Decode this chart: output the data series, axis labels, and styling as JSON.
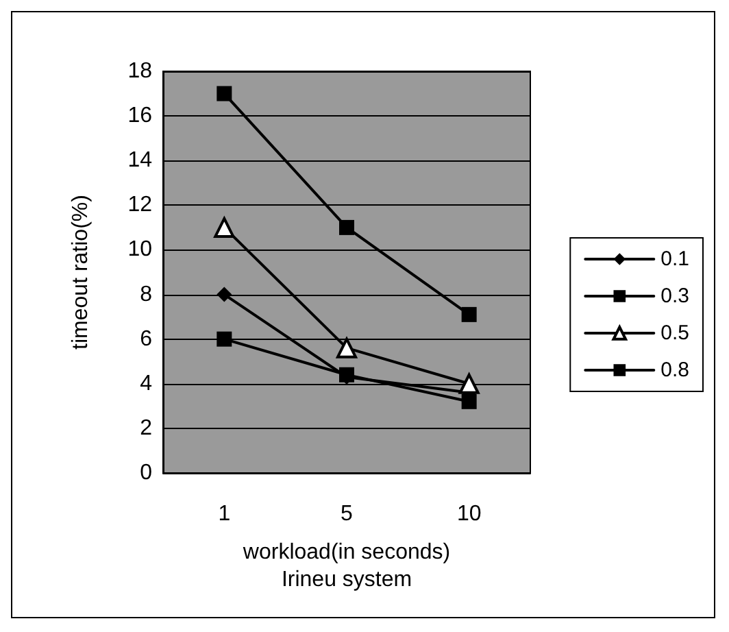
{
  "chart_data": {
    "type": "line",
    "xlabel": "workload(in seconds)\nIrineu system",
    "ylabel": "timeout ratio(%)",
    "categories": [
      "1",
      "5",
      "10"
    ],
    "series": [
      {
        "name": "0.1",
        "color": "#000000",
        "marker": "diamond",
        "values": [
          8,
          4.3,
          3.6
        ]
      },
      {
        "name": "0.3",
        "color": "#000000",
        "marker": "square",
        "values": [
          6,
          4.4,
          3.2
        ]
      },
      {
        "name": "0.5",
        "color": "#000000",
        "marker": "triangle",
        "values": [
          11,
          5.6,
          4
        ]
      },
      {
        "name": "0.8",
        "color": "#000000",
        "marker": "square",
        "values": [
          17,
          11,
          7.1
        ]
      }
    ],
    "ylim": [
      0,
      18
    ],
    "yticks": [
      0,
      2,
      4,
      6,
      8,
      10,
      12,
      14,
      16,
      18
    ],
    "grid": "y",
    "legend": "right",
    "line_style": "solid"
  }
}
